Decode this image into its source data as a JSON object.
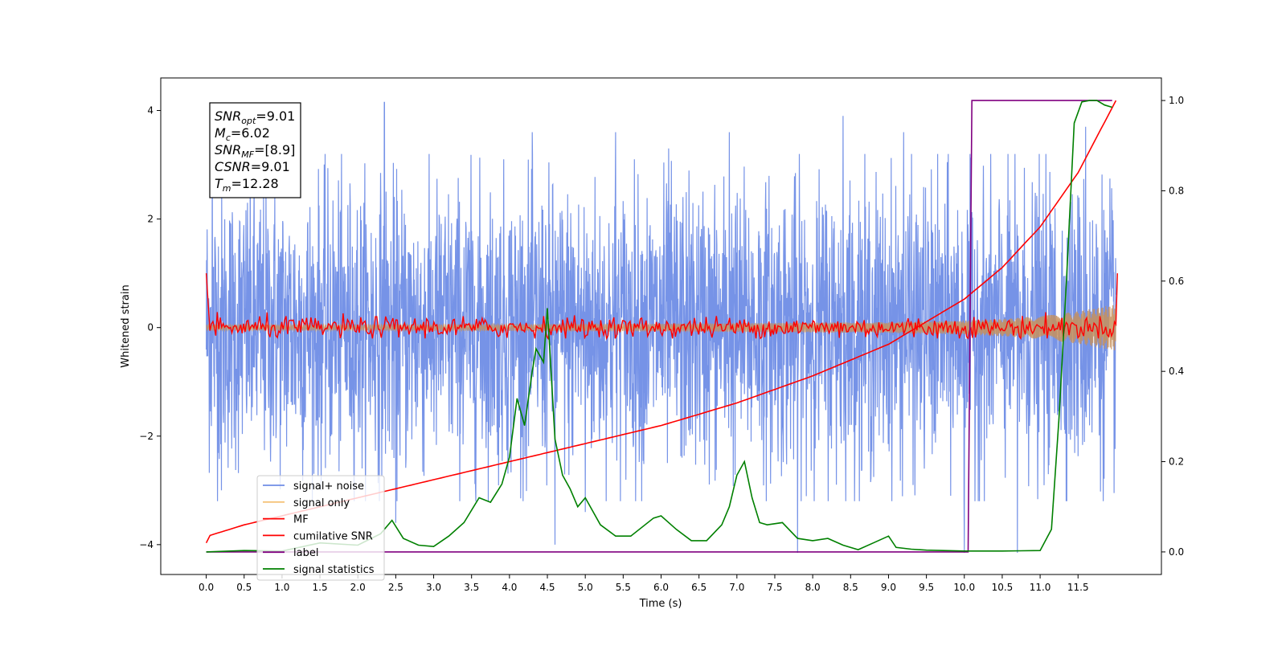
{
  "chart_data": {
    "type": "line",
    "xlabel": "Time (s)",
    "ylabel": "Whitened strain",
    "xlim": [
      -0.6,
      12.6
    ],
    "ylim": [
      -4.55,
      4.6
    ],
    "y2lim": [
      -0.05,
      1.05
    ],
    "x_ticks": [
      0.0,
      0.5,
      1.0,
      1.5,
      2.0,
      2.5,
      3.0,
      3.5,
      4.0,
      4.5,
      5.0,
      5.5,
      6.0,
      6.5,
      7.0,
      7.5,
      8.0,
      8.5,
      9.0,
      9.5,
      10.0,
      10.5,
      11.0,
      11.5
    ],
    "x_tick_labels": [
      "0.0",
      "0.5",
      "1.0",
      "1.5",
      "2.0",
      "2.5",
      "3.0",
      "3.5",
      "4.0",
      "4.5",
      "5.0",
      "5.5",
      "6.0",
      "6.5",
      "7.0",
      "7.5",
      "8.0",
      "8.5",
      "9.0",
      "9.5",
      "10.0",
      "10.5",
      "11.0",
      "11.5"
    ],
    "y_ticks": [
      -4,
      -2,
      0,
      2,
      4
    ],
    "y_tick_labels": [
      "−4",
      "−2",
      "0",
      "2",
      "4"
    ],
    "y2_ticks": [
      0.0,
      0.2,
      0.4,
      0.6,
      0.8,
      1.0
    ],
    "y2_tick_labels": [
      "0.0",
      "0.2",
      "0.4",
      "0.6",
      "0.8",
      "1.0"
    ],
    "annotation": {
      "lines": [
        {
          "sym": "SNR",
          "sub": "opt",
          "val": "=9.01"
        },
        {
          "sym": "M",
          "sub": "c",
          "val": "=6.02"
        },
        {
          "sym": "SNR",
          "sub": "MF",
          "val": "=[8.9]"
        },
        {
          "sym": "CSNR",
          "sub": "",
          "val": "=9.01"
        },
        {
          "sym": "T",
          "sub": "m",
          "val": "=12.28"
        }
      ]
    },
    "legend_position": "lower-left",
    "series": [
      {
        "name": "signal+ noise",
        "color": "#6f8de6",
        "axis": "left",
        "description_range": {
          "x": [
            0.0,
            12.0
          ],
          "band_min": -4.0,
          "band_max": 4.15,
          "typical_abs": 1.3
        },
        "peaks": [
          [
            0.08,
            3.8
          ],
          [
            0.2,
            4.15
          ],
          [
            2.35,
            4.15
          ],
          [
            4.3,
            3.6
          ],
          [
            5.4,
            3.6
          ],
          [
            6.1,
            3.3
          ],
          [
            6.9,
            3.6
          ],
          [
            8.4,
            3.9
          ],
          [
            9.2,
            3.6
          ],
          [
            11.6,
            3.7
          ]
        ],
        "troughs": [
          [
            0.2,
            -3.0
          ],
          [
            2.5,
            -3.6
          ],
          [
            4.6,
            -4.0
          ],
          [
            5.0,
            -3.4
          ],
          [
            7.8,
            -4.15
          ],
          [
            10.0,
            -4.15
          ],
          [
            10.7,
            -4.15
          ]
        ]
      },
      {
        "name": "signal only",
        "color": "#f5b041",
        "axis": "left",
        "envelope": {
          "x": [
            0.0,
            2.0,
            4.0,
            6.0,
            8.0,
            9.0,
            10.0,
            10.5,
            11.0,
            11.5,
            12.0
          ],
          "amp": [
            0.05,
            0.055,
            0.06,
            0.07,
            0.09,
            0.1,
            0.13,
            0.16,
            0.21,
            0.3,
            0.43
          ]
        }
      },
      {
        "name": "MF",
        "color": "#ff0000",
        "axis": "left",
        "x": [
          0.0,
          0.05,
          12.0,
          12.02
        ],
        "y": [
          1.0,
          -0.1,
          -0.1,
          1.0
        ],
        "noise_amp": 0.18
      },
      {
        "name": "cumilative SNR",
        "color": "#ff0000",
        "axis": "right",
        "x": [
          0.0,
          0.02,
          0.5,
          1.0,
          2.0,
          3.0,
          4.0,
          5.0,
          6.0,
          7.0,
          8.0,
          9.0,
          10.0,
          10.5,
          11.0,
          11.5,
          12.0
        ],
        "y": [
          0.02,
          0.035,
          0.06,
          0.08,
          0.12,
          0.16,
          0.2,
          0.24,
          0.28,
          0.33,
          0.39,
          0.46,
          0.56,
          0.63,
          0.72,
          0.84,
          1.0
        ]
      },
      {
        "name": "label",
        "color": "#800080",
        "axis": "right",
        "x": [
          0.0,
          10.05,
          10.1,
          11.95
        ],
        "y": [
          0.0,
          0.0,
          1.0,
          1.0
        ]
      },
      {
        "name": "signal statistics",
        "color": "#008000",
        "axis": "right",
        "x": [
          0.0,
          0.5,
          1.0,
          1.5,
          2.0,
          2.3,
          2.45,
          2.6,
          2.8,
          3.0,
          3.2,
          3.4,
          3.6,
          3.75,
          3.9,
          4.0,
          4.1,
          4.2,
          4.3,
          4.35,
          4.45,
          4.5,
          4.6,
          4.7,
          4.8,
          4.9,
          5.0,
          5.2,
          5.4,
          5.6,
          5.9,
          6.0,
          6.2,
          6.4,
          6.6,
          6.8,
          6.9,
          7.0,
          7.1,
          7.2,
          7.3,
          7.4,
          7.6,
          7.8,
          8.0,
          8.2,
          8.4,
          8.6,
          8.8,
          9.0,
          9.1,
          9.3,
          9.5,
          10.0,
          10.5,
          11.0,
          11.15,
          11.25,
          11.35,
          11.45,
          11.55,
          11.65,
          11.75,
          11.85,
          11.95
        ],
        "y": [
          0.0,
          0.003,
          0.002,
          0.02,
          0.015,
          0.04,
          0.07,
          0.03,
          0.015,
          0.012,
          0.035,
          0.065,
          0.12,
          0.11,
          0.15,
          0.21,
          0.34,
          0.28,
          0.4,
          0.45,
          0.42,
          0.54,
          0.25,
          0.17,
          0.14,
          0.1,
          0.12,
          0.06,
          0.035,
          0.035,
          0.075,
          0.08,
          0.05,
          0.025,
          0.025,
          0.06,
          0.1,
          0.17,
          0.2,
          0.12,
          0.065,
          0.06,
          0.065,
          0.03,
          0.025,
          0.03,
          0.015,
          0.005,
          0.02,
          0.035,
          0.01,
          0.006,
          0.004,
          0.002,
          0.002,
          0.003,
          0.05,
          0.3,
          0.61,
          0.95,
          0.997,
          1.0,
          1.0,
          0.99,
          0.985
        ]
      }
    ]
  }
}
